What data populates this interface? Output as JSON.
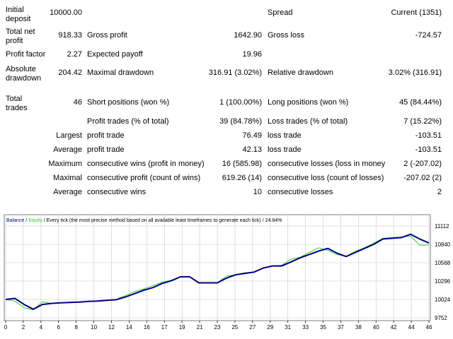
{
  "report": {
    "initial_deposit": {
      "label": "Initial deposit",
      "value": "10000.00"
    },
    "spread": {
      "label": "Spread",
      "value": "Current (1351)"
    },
    "total_net_profit": {
      "label": "Total net profit",
      "value": "918.33"
    },
    "gross_profit": {
      "label": "Gross profit",
      "value": "1642.90"
    },
    "gross_loss": {
      "label": "Gross loss",
      "value": "-724.57"
    },
    "profit_factor": {
      "label": "Profit factor",
      "value": "2.27"
    },
    "expected_payoff": {
      "label": "Expected payoff",
      "value": "19.96"
    },
    "absolute_drawdown": {
      "label": "Absolute drawdown",
      "value": "204.42"
    },
    "maximal_drawdown": {
      "label": "Maximal drawdown",
      "value": "316.91 (3.02%)"
    },
    "relative_drawdown": {
      "label": "Relative drawdown",
      "value": "3.02% (316.91)"
    },
    "total_trades": {
      "label": "Total trades",
      "value": "46"
    },
    "short_positions": {
      "label": "Short positions (won %)",
      "value": "1 (100.00%)"
    },
    "long_positions": {
      "label": "Long positions (won %)",
      "value": "45 (84.44%)"
    },
    "profit_trades": {
      "label": "Profit trades (% of total)",
      "value": "39 (84.78%)"
    },
    "loss_trades": {
      "label": "Loss trades (% of total)",
      "value": "7 (15.22%)"
    },
    "largest": {
      "label": "Largest",
      "profit_label": "profit trade",
      "profit_value": "76.49",
      "loss_label": "loss trade",
      "loss_value": "-103.51"
    },
    "average": {
      "label": "Average",
      "profit_label": "profit trade",
      "profit_value": "42.13",
      "loss_label": "loss trade",
      "loss_value": "-103.51"
    },
    "maximum": {
      "label": "Maximum",
      "wins_label": "consecutive wins (profit in money)",
      "wins_value": "16 (585.98)",
      "losses_label": "consecutive losses (loss in money",
      "losses_value": "2 (-207.02)"
    },
    "maximal": {
      "label": "Maximal",
      "profit_label": "consecutive profit (count of wins)",
      "profit_value": "619.26 (14)",
      "loss_label": "consecutive loss (count of losses)",
      "loss_value": "-207.02 (2)"
    },
    "average_consecutive": {
      "label": "Average",
      "wins_label": "consecutive wins",
      "wins_value": "10",
      "losses_label": "consecutive losses",
      "losses_value": "2"
    }
  },
  "chart_data": {
    "type": "line",
    "header": {
      "balance_label": "Balance",
      "separator": "/",
      "equity_label": "Equity",
      "description": "/ Every tick (the most precise method based on all available least timeframes to generate each tick)",
      "quality": "/ 24.84%"
    },
    "colors": {
      "balance": "#00008b",
      "equity": "#33cc33",
      "grid": "#c8c8c8"
    },
    "x_ticks": [
      "0",
      "2",
      "4",
      "6",
      "8",
      "10",
      "12",
      "14",
      "16",
      "17",
      "19",
      "21",
      "23",
      "25",
      "27",
      "29",
      "31",
      "33",
      "35",
      "37",
      "38",
      "40",
      "42",
      "44",
      "46"
    ],
    "y_ticks": [
      "11112",
      "10840",
      "10568",
      "10296",
      "10024",
      "9752"
    ],
    "ylim": [
      9752,
      11112
    ],
    "xlim": [
      0,
      46
    ],
    "series": [
      {
        "name": "Balance",
        "color": "#00008b",
        "x": [
          0,
          1,
          2,
          3,
          4,
          5,
          6,
          7,
          8,
          9,
          10,
          11,
          12,
          13,
          14,
          15,
          16,
          17,
          18,
          19,
          20,
          21,
          22,
          23,
          24,
          25,
          26,
          27,
          28,
          29,
          30,
          31,
          32,
          33,
          34,
          35,
          36,
          37,
          38,
          39,
          40,
          41,
          42,
          43,
          44,
          45,
          46
        ],
        "y": [
          10024,
          10040,
          9950,
          9880,
          9950,
          9965,
          9975,
          9980,
          9985,
          9995,
          10000,
          10010,
          10020,
          10060,
          10110,
          10160,
          10200,
          10260,
          10300,
          10360,
          10360,
          10270,
          10270,
          10270,
          10340,
          10390,
          10410,
          10430,
          10490,
          10520,
          10520,
          10580,
          10640,
          10690,
          10740,
          10780,
          10710,
          10660,
          10720,
          10780,
          10840,
          10920,
          10930,
          10940,
          10990,
          10920,
          10860
        ]
      },
      {
        "name": "Equity",
        "color": "#33cc33",
        "x": [
          0,
          1,
          2,
          3,
          4,
          5,
          6,
          7,
          8,
          9,
          10,
          11,
          12,
          13,
          14,
          15,
          16,
          17,
          18,
          19,
          20,
          21,
          22,
          23,
          24,
          25,
          26,
          27,
          28,
          29,
          30,
          31,
          32,
          33,
          34,
          35,
          36,
          37,
          38,
          39,
          40,
          41,
          42,
          43,
          44,
          45,
          46
        ],
        "y": [
          10024,
          10000,
          9900,
          9870,
          9990,
          9965,
          9975,
          9985,
          9990,
          9995,
          10005,
          10015,
          10025,
          10080,
          10140,
          10180,
          10230,
          10280,
          10310,
          10360,
          10360,
          10270,
          10270,
          10270,
          10370,
          10390,
          10420,
          10430,
          10490,
          10520,
          10530,
          10620,
          10650,
          10720,
          10790,
          10750,
          10690,
          10660,
          10740,
          10790,
          10860,
          10930,
          10940,
          10950,
          10960,
          10830,
          10830
        ]
      }
    ]
  }
}
